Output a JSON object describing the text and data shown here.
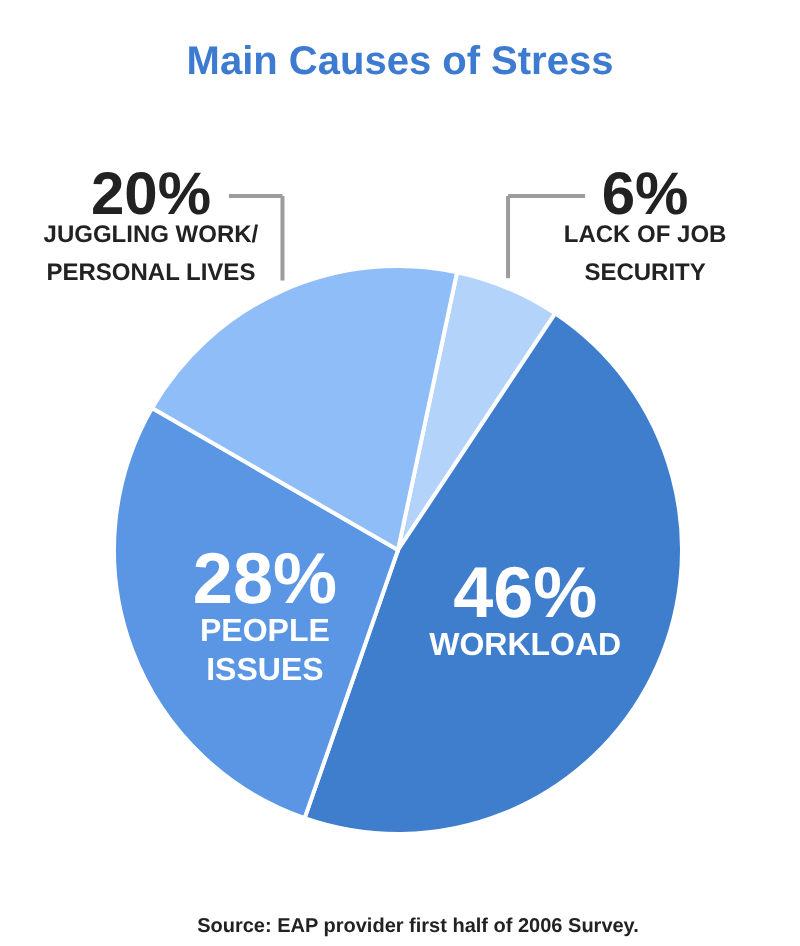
{
  "chart_data": {
    "type": "pie",
    "title": "Main Causes of Stress",
    "categories": [
      "LACK OF JOB\nSECURITY",
      "WORKLOAD",
      "PEOPLE\nISSUES",
      "JUGGLING WORK/\nPERSONAL LIVES"
    ],
    "values": [
      6,
      46,
      28,
      20
    ],
    "colors": [
      "#b3d3fb",
      "#3f7ecc",
      "#5a96e3",
      "#8fbdf8"
    ],
    "value_labels": [
      "6%",
      "46%",
      "28%",
      "20%"
    ],
    "annotations": [
      "Source: EAP provider first half of 2006 Survey."
    ]
  }
}
